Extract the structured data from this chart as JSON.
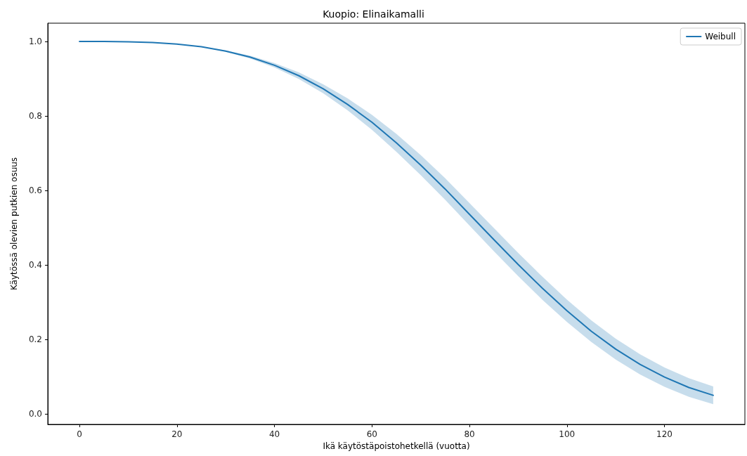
{
  "chart_data": {
    "type": "line",
    "title": "Kuopio: Elinaikamalli",
    "xlabel": "Ikä käytöstäpoistohetkellä (vuotta)",
    "ylabel": "Käytössä olevien putkien osuus",
    "x": [
      0,
      5,
      10,
      15,
      20,
      25,
      30,
      35,
      40,
      45,
      50,
      55,
      60,
      65,
      70,
      75,
      80,
      85,
      90,
      95,
      100,
      105,
      110,
      115,
      120,
      125,
      130
    ],
    "series": [
      {
        "name": "Weibull",
        "color": "#1f77b4",
        "values": [
          1.0,
          1.0,
          0.999,
          0.997,
          0.993,
          0.986,
          0.974,
          0.958,
          0.936,
          0.908,
          0.873,
          0.831,
          0.783,
          0.728,
          0.668,
          0.604,
          0.536,
          0.468,
          0.401,
          0.337,
          0.277,
          0.222,
          0.174,
          0.133,
          0.099,
          0.071,
          0.05
        ],
        "lower": [
          1.0,
          1.0,
          0.999,
          0.997,
          0.993,
          0.986,
          0.972,
          0.954,
          0.93,
          0.899,
          0.861,
          0.815,
          0.763,
          0.704,
          0.641,
          0.575,
          0.506,
          0.437,
          0.37,
          0.306,
          0.247,
          0.193,
          0.146,
          0.106,
          0.073,
          0.046,
          0.026
        ],
        "upper": [
          1.0,
          1.0,
          0.999,
          0.997,
          0.993,
          0.986,
          0.976,
          0.962,
          0.942,
          0.917,
          0.885,
          0.847,
          0.803,
          0.752,
          0.695,
          0.633,
          0.566,
          0.499,
          0.432,
          0.368,
          0.307,
          0.251,
          0.202,
          0.16,
          0.125,
          0.096,
          0.074
        ]
      }
    ],
    "xlim": [
      -6.5,
      136.5
    ],
    "xticks": [
      0,
      20,
      40,
      60,
      80,
      100,
      120
    ],
    "ylim": [
      -0.028,
      1.049
    ],
    "yticks": [
      {
        "value": 0,
        "label": "0.0"
      },
      0.2,
      0.4,
      0.6,
      0.8,
      {
        "value": 1,
        "label": "1.0"
      }
    ],
    "legend": "top right",
    "marker": "none",
    "line_style": "solid"
  }
}
